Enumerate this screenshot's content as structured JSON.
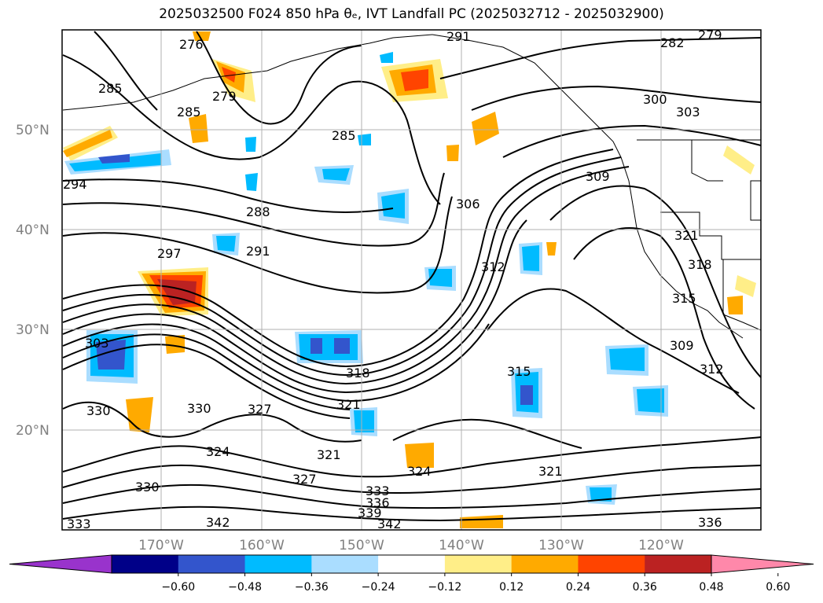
{
  "title": "2025032500 F024 850 hPa θₑ, IVT Landfall PC (2025032712 - 2025032900)",
  "map": {
    "lat_labels": [
      "50°N",
      "40°N",
      "30°N",
      "20°N"
    ],
    "lon_labels": [
      "170°W",
      "160°W",
      "150°W",
      "140°W",
      "130°W",
      "120°W"
    ],
    "contour_labels": [
      "276",
      "279",
      "285",
      "285",
      "285",
      "288",
      "291",
      "291",
      "294",
      "297",
      "300",
      "303",
      "303",
      "306",
      "309",
      "309",
      "312",
      "312",
      "315",
      "315",
      "318",
      "318",
      "321",
      "321",
      "321",
      "321",
      "324",
      "324",
      "327",
      "327",
      "330",
      "330",
      "330",
      "333",
      "333",
      "336",
      "336",
      "339",
      "342",
      "342",
      "282",
      "279"
    ]
  },
  "colorbar": {
    "ticks": [
      "−0.60",
      "−0.48",
      "−0.36",
      "−0.24",
      "−0.12",
      "0.12",
      "0.24",
      "0.36",
      "0.48",
      "0.60"
    ],
    "colors": [
      "#9933cc",
      "#000088",
      "#3355cc",
      "#00bbff",
      "#aaddff",
      "#ffffff",
      "#ffee88",
      "#ffaa00",
      "#ff4400",
      "#bb2222",
      "#ff88aa"
    ]
  }
}
